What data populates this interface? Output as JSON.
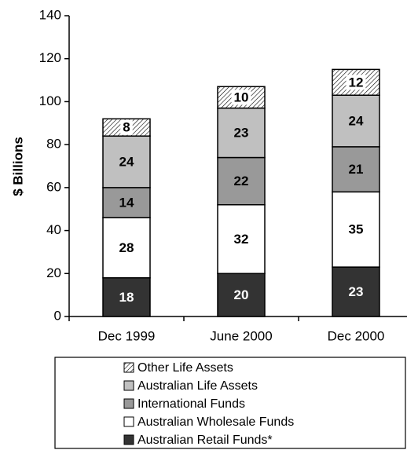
{
  "chart_data": {
    "type": "stacked_bar",
    "y_label": "$ Billions",
    "categories": [
      "Dec 1999",
      "June 2000",
      "Dec 2000"
    ],
    "series": [
      {
        "name": "Australian Retail Funds*",
        "color": "#333333",
        "values": [
          18,
          20,
          23
        ]
      },
      {
        "name": "Australian Wholesale Funds",
        "color": "#ffffff",
        "values": [
          28,
          32,
          35
        ]
      },
      {
        "name": "International Funds",
        "color": "#999999",
        "values": [
          14,
          22,
          21
        ]
      },
      {
        "name": "Australian Life Assets",
        "color": "#c0c0c0",
        "values": [
          24,
          23,
          24
        ]
      },
      {
        "name": "Other Life Assets",
        "color": "#ffffff",
        "hatch": true,
        "values": [
          8,
          10,
          12
        ]
      }
    ],
    "ylim": [
      0,
      140
    ],
    "yticks": [
      0,
      20,
      40,
      60,
      80,
      100,
      120,
      140
    ],
    "legend": "bottom"
  }
}
